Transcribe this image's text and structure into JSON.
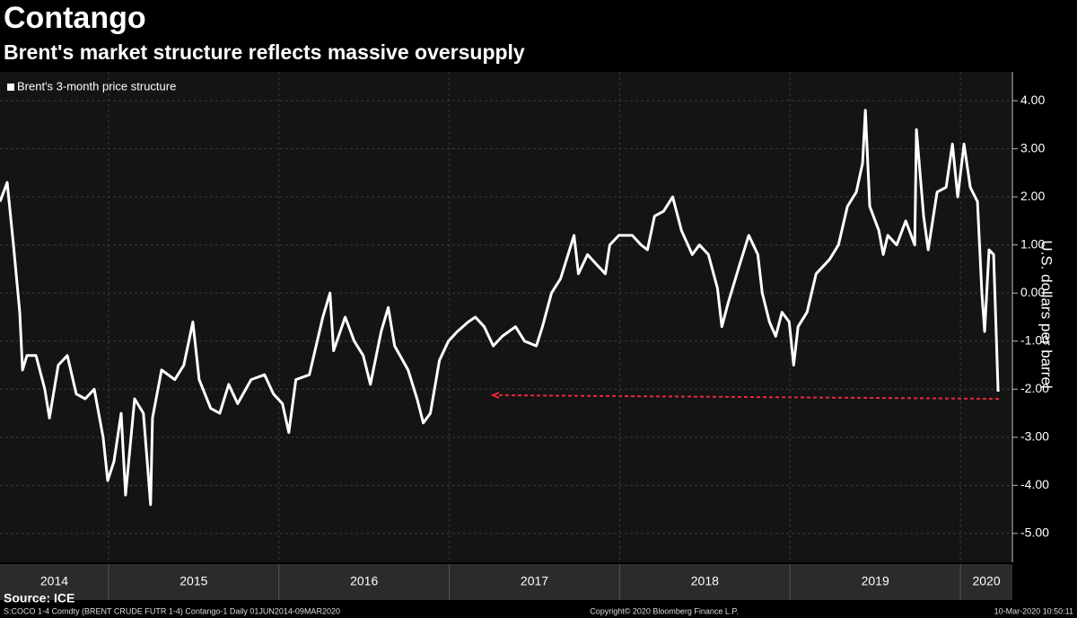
{
  "chart_data": {
    "type": "line",
    "title": "Contango",
    "subtitle": "Brent's market structure reflects massive oversupply",
    "y_axis_label": "U.S. dollars per barrel",
    "source": "Source: ICE",
    "footer_left": "S:COCO 1-4 Comdty (BRENT CRUDE FUTR   1-4) Contango-1  Daily 01JUN2014-09MAR2020",
    "footer_center": "Copyright© 2020 Bloomberg Finance L.P.",
    "footer_right": "10-Mar-2020 10:50:11",
    "grid": true,
    "legend": "top-left",
    "xlim": [
      2014.363,
      2020.305
    ],
    "xticks": [
      2014,
      2015,
      2016,
      2017,
      2018,
      2019,
      2020
    ],
    "ylim": [
      -5.6,
      4.6
    ],
    "yticks": [
      {
        "value": 4,
        "label": "4.00"
      },
      {
        "value": 3,
        "label": "3.00"
      },
      {
        "value": 2,
        "label": "2.00"
      },
      {
        "value": 1,
        "label": "1.00"
      },
      {
        "value": 0,
        "label": "0.00"
      },
      {
        "value": -1,
        "label": "-1.00"
      },
      {
        "value": -2,
        "label": "-2.00"
      },
      {
        "value": -3,
        "label": "-3.00"
      },
      {
        "value": -4,
        "label": "-4.00"
      },
      {
        "value": -5,
        "label": "-5.00"
      }
    ],
    "series": [
      {
        "name": "Brent's 3-month price structure",
        "color": "#ffffff",
        "x": [
          2014.363,
          2014.405,
          2014.442,
          2014.479,
          2014.495,
          2014.521,
          2014.574,
          2014.626,
          2014.653,
          2014.705,
          2014.758,
          2014.811,
          2014.863,
          2014.916,
          2014.968,
          2014.995,
          2015.032,
          2015.074,
          2015.1,
          2015.153,
          2015.205,
          2015.247,
          2015.258,
          2015.311,
          2015.389,
          2015.442,
          2015.495,
          2015.532,
          2015.6,
          2015.653,
          2015.705,
          2015.758,
          2015.837,
          2015.916,
          2015.968,
          2016.021,
          2016.058,
          2016.1,
          2016.179,
          2016.258,
          2016.3,
          2016.321,
          2016.389,
          2016.442,
          2016.495,
          2016.537,
          2016.6,
          2016.642,
          2016.679,
          2016.758,
          2016.811,
          2016.847,
          2016.889,
          2016.942,
          2016.995,
          2017.047,
          2017.111,
          2017.153,
          2017.205,
          2017.258,
          2017.311,
          2017.389,
          2017.442,
          2017.511,
          2017.547,
          2017.6,
          2017.653,
          2017.732,
          2017.758,
          2017.811,
          2017.863,
          2017.916,
          2017.942,
          2017.995,
          2018.074,
          2018.126,
          2018.163,
          2018.205,
          2018.258,
          2018.311,
          2018.363,
          2018.426,
          2018.468,
          2018.521,
          2018.574,
          2018.6,
          2018.637,
          2018.705,
          2018.758,
          2018.811,
          2018.837,
          2018.879,
          2018.916,
          2018.953,
          2018.995,
          2019.021,
          2019.047,
          2019.1,
          2019.153,
          2019.232,
          2019.284,
          2019.337,
          2019.389,
          2019.426,
          2019.442,
          2019.468,
          2019.521,
          2019.547,
          2019.574,
          2019.626,
          2019.679,
          2019.732,
          2019.742,
          2019.784,
          2019.811,
          2019.863,
          2019.916,
          2019.953,
          2019.984,
          2020.021,
          2020.058,
          2020.1,
          2020.126,
          2020.142,
          2020.168,
          2020.195,
          2020.221
        ],
        "values": [
          1.9,
          2.3,
          1.0,
          -0.4,
          -1.6,
          -1.3,
          -1.3,
          -2.0,
          -2.6,
          -1.5,
          -1.3,
          -2.1,
          -2.2,
          -2.0,
          -3.0,
          -3.9,
          -3.5,
          -2.5,
          -4.2,
          -2.2,
          -2.5,
          -4.4,
          -2.6,
          -1.6,
          -1.8,
          -1.5,
          -0.6,
          -1.8,
          -2.4,
          -2.5,
          -1.9,
          -2.3,
          -1.8,
          -1.7,
          -2.1,
          -2.3,
          -2.9,
          -1.8,
          -1.7,
          -0.5,
          0.0,
          -1.2,
          -0.5,
          -1.0,
          -1.3,
          -1.9,
          -0.8,
          -0.3,
          -1.1,
          -1.6,
          -2.2,
          -2.7,
          -2.5,
          -1.4,
          -1.0,
          -0.8,
          -0.6,
          -0.5,
          -0.7,
          -1.1,
          -0.9,
          -0.7,
          -1.0,
          -1.1,
          -0.7,
          0.0,
          0.3,
          1.2,
          0.4,
          0.8,
          0.6,
          0.4,
          1.0,
          1.2,
          1.2,
          1.0,
          0.9,
          1.6,
          1.7,
          2.0,
          1.3,
          0.8,
          1.0,
          0.8,
          0.1,
          -0.7,
          -0.2,
          0.6,
          1.2,
          0.8,
          0.0,
          -0.6,
          -0.9,
          -0.4,
          -0.6,
          -1.5,
          -0.7,
          -0.4,
          0.4,
          0.7,
          1.0,
          1.8,
          2.1,
          2.7,
          3.8,
          1.8,
          1.3,
          0.8,
          1.2,
          1.0,
          1.5,
          1.0,
          3.4,
          1.6,
          0.9,
          2.1,
          2.2,
          3.1,
          2.0,
          3.1,
          2.2,
          1.9,
          0.0,
          -0.8,
          0.9,
          0.8,
          -2.05
        ]
      }
    ]
  }
}
